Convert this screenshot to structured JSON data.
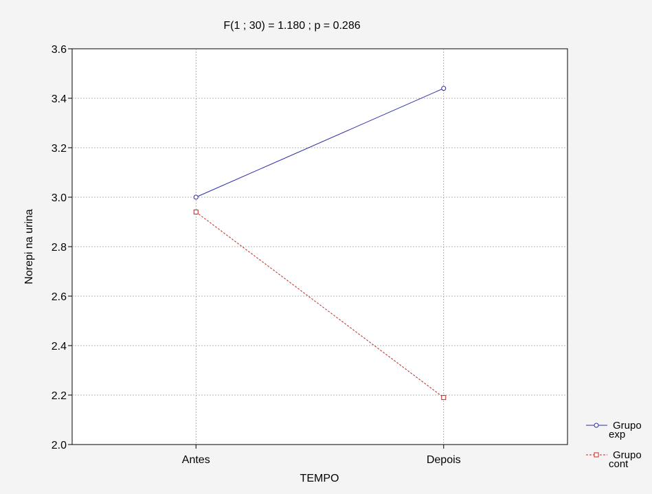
{
  "chart_data": {
    "type": "line",
    "title": "F(1 ; 30) = 1.180 ; p = 0.286",
    "xlabel": "TEMPO",
    "ylabel": "Norepi na urina",
    "categories": [
      "Antes",
      "Depois"
    ],
    "ylim": [
      2.0,
      3.6
    ],
    "yticks": [
      "2.0",
      "2.2",
      "2.4",
      "2.6",
      "2.8",
      "3.0",
      "3.2",
      "3.4",
      "3.6"
    ],
    "grid": true,
    "legend_position": "bottom-right",
    "series": [
      {
        "name": "Grupo exp",
        "legend_lines": [
          "Grupo",
          "exp"
        ],
        "values": [
          3.0,
          3.44
        ],
        "color": "#2a2aa8",
        "marker": "circle",
        "line_style": "solid"
      },
      {
        "name": "Grupo cont",
        "legend_lines": [
          "Grupo",
          "cont"
        ],
        "values": [
          2.94,
          2.19
        ],
        "color": "#cc2020",
        "marker": "square",
        "line_style": "dashed"
      }
    ]
  }
}
